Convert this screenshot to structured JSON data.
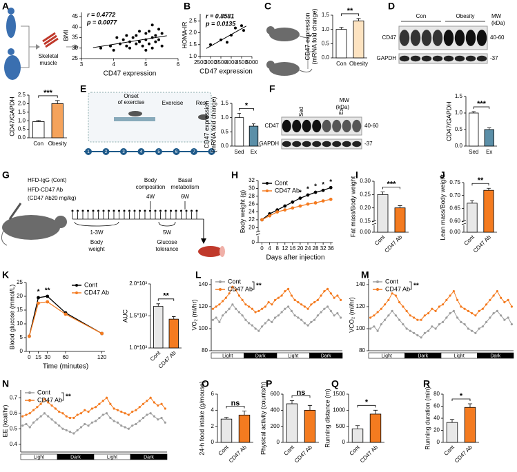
{
  "figure": {
    "A_text": [
      "Skeletal",
      "muscle"
    ],
    "blots": [
      {
        "label": "D",
        "groups": [
          "Con",
          "Obesity"
        ],
        "rows": [
          "CD47",
          "GAPDH"
        ],
        "mw_title": [
          "MW",
          "(kDa)"
        ],
        "mw": [
          "40-60",
          "-37"
        ]
      },
      {
        "label": "F",
        "groups": [
          "Sed",
          "Ex"
        ],
        "rows": [
          "CD47",
          "GAPDH"
        ],
        "mw_title": [
          "MW",
          "(kDa)"
        ],
        "mw": [
          "40-60",
          "-37"
        ]
      }
    ],
    "E_diagram": {
      "label": "E",
      "onset": [
        "Onset",
        "of exercise"
      ],
      "exercise": "Exercise",
      "rest": "Rest",
      "days": [
        "1",
        "2",
        "3",
        "4",
        "5",
        "6",
        "7",
        "8"
      ]
    },
    "G_diagram": {
      "label": "G",
      "group1": "HFD-IgG (Cont)",
      "group2": "HFD-CD47 Ab",
      "dose": "(CD47 Ab20 mg/kg)",
      "composition": [
        "Body",
        "composition"
      ],
      "w4": "4W",
      "metabolism": [
        "Basal",
        "metabolism"
      ],
      "w6": "6W",
      "w13": "1-3W",
      "weight": [
        "Body",
        "weight"
      ],
      "w5": "5W",
      "glucose": [
        "Glucose",
        "tolerance"
      ]
    }
  },
  "chart_data": [
    {
      "type": "scatter",
      "label": "A",
      "x": [
        3.6,
        3.9,
        4.0,
        4.2,
        4.3,
        4.4,
        4.5,
        4.5,
        4.6,
        4.7,
        4.7,
        4.8,
        4.9,
        5.0,
        5.0,
        5.1,
        5.1,
        5.2,
        5.2,
        5.3,
        5.3,
        5.4,
        5.4,
        5.5,
        5.5,
        4.1,
        4.8,
        5.0,
        5.2,
        4.4
      ],
      "y": [
        30,
        31,
        29,
        32,
        34,
        31,
        33,
        30,
        35,
        32,
        36,
        33,
        31,
        34,
        37,
        32,
        38,
        35,
        30,
        36,
        33,
        39,
        34,
        37,
        31,
        35,
        38,
        29,
        41,
        36
      ],
      "xlim": [
        3,
        6
      ],
      "xticks": [
        3,
        4,
        5,
        6
      ],
      "ylim": [
        25,
        47
      ],
      "yticks": [
        25,
        30,
        35,
        40,
        45
      ],
      "xlabel": "CD47 expression",
      "ylabel": [
        "BMI"
      ],
      "annotations": [
        "r = 0.4772",
        "p = 0.0077"
      ],
      "color": "#000000"
    },
    {
      "type": "scatter",
      "label": "B",
      "x": [
        3000,
        3500,
        3800,
        4000,
        4200,
        4500,
        4600
      ],
      "y": [
        1.5,
        1.7,
        1.6,
        1.9,
        2.2,
        2.3,
        2.1
      ],
      "xlim": [
        2500,
        5000
      ],
      "xticks": [
        2500,
        3000,
        3500,
        4000,
        4500,
        5000
      ],
      "ylim": [
        1.0,
        2.8
      ],
      "yticks": [
        {
          "value": 1,
          "label": "1.0"
        },
        1.5,
        {
          "value": 2,
          "label": "2.0"
        },
        2.5
      ],
      "xlabel": "CD47 expression",
      "ylabel": [
        "HOMA-IR"
      ],
      "annotations": [
        "r = 0.8581",
        "p = 0.0135"
      ],
      "color": "#000000"
    },
    {
      "type": "bar",
      "label": "C",
      "categories": [
        "Con",
        "Obesity"
      ],
      "values": [
        1.0,
        1.3
      ],
      "errors": [
        0.07,
        0.08
      ],
      "colors": [
        "#ffffff",
        "#fde3c1"
      ],
      "ylim": [
        0,
        1.5
      ],
      "yticks": [
        {
          "value": 0,
          "label": "0.0"
        },
        0.5,
        {
          "value": 1,
          "label": "1.0"
        },
        1.5
      ],
      "ylabel": [
        "CD47 expression",
        "(mRNA fold change)"
      ],
      "sig": "**",
      "rotate": false
    },
    {
      "type": "bar",
      "categories": [
        "Con",
        "Obesity"
      ],
      "values": [
        0.95,
        2.0
      ],
      "errors": [
        0.06,
        0.18
      ],
      "colors": [
        "#ffffff",
        "#f5a35c"
      ],
      "ylim": [
        0,
        2.5
      ],
      "yticks": [
        {
          "value": 0,
          "label": "0.0"
        },
        0.5,
        {
          "value": 1,
          "label": "1.0"
        },
        1.5,
        {
          "value": 2,
          "label": "2.0"
        },
        2.5
      ],
      "ylabel": [
        "CD47/GAPDH"
      ],
      "sig": "***",
      "rotate": false
    },
    {
      "type": "bar",
      "categories": [
        "Sed",
        "Ex"
      ],
      "values": [
        1.0,
        0.7
      ],
      "errors": [
        0.15,
        0.08
      ],
      "colors": [
        "#ffffff",
        "#5b8fa8"
      ],
      "ylim": [
        0,
        1.5
      ],
      "yticks": [
        {
          "value": 0,
          "label": "0.0"
        },
        0.5,
        {
          "value": 1,
          "label": "1.0"
        },
        1.5
      ],
      "ylabel": [
        "CD47 expression",
        "(mRNA fold change)"
      ],
      "sig": "*",
      "rotate": false
    },
    {
      "type": "bar",
      "categories": [
        "Sed",
        "Ex"
      ],
      "values": [
        1.0,
        0.5
      ],
      "errors": [
        0.04,
        0.05
      ],
      "colors": [
        "#ffffff",
        "#5b8fa8"
      ],
      "ylim": [
        0,
        1.5
      ],
      "yticks": [
        {
          "value": 0,
          "label": "0.0"
        },
        0.5,
        {
          "value": 1,
          "label": "1.0"
        },
        1.5
      ],
      "ylabel": [
        "CD47/GAPDH"
      ],
      "sig": "***",
      "rotate": false
    },
    {
      "type": "line",
      "label": "H",
      "x": [
        0,
        4,
        8,
        12,
        16,
        20,
        24,
        28,
        32,
        36
      ],
      "series": [
        {
          "name": "Cont",
          "color": "#000000",
          "values": [
            22,
            23.5,
            24.5,
            25.5,
            26.5,
            27.5,
            28.3,
            29,
            29.5,
            30.2
          ]
        },
        {
          "name": "CD47 Ab",
          "color": "#f47b20",
          "values": [
            22,
            23,
            24,
            24.5,
            25,
            25.5,
            26,
            26.3,
            26.8,
            27.2
          ]
        }
      ],
      "xlim": [
        -2,
        37
      ],
      "xticks": [
        0,
        4,
        8,
        12,
        16,
        20,
        24,
        28,
        32,
        36
      ],
      "ylim": [
        19,
        32
      ],
      "yticks": [
        20,
        22,
        24,
        26,
        28,
        30,
        32
      ],
      "ybreak": 0,
      "xlabel": "Days after injection",
      "ylabel": [
        "Body weight (g)"
      ],
      "legend": "upper left",
      "sig_x": [
        20,
        24,
        28,
        32,
        36
      ],
      "sig_labels": [
        "*",
        "*",
        "*",
        "*",
        "*"
      ]
    },
    {
      "type": "bar",
      "label": "I",
      "categories": [
        "Cont",
        "CD47 Ab"
      ],
      "values": [
        0.25,
        0.2
      ],
      "errors": [
        0.01,
        0.008
      ],
      "colors": [
        "#e8e8e8",
        "#f47b20"
      ],
      "ylim": [
        0.15,
        0.3
      ],
      "yticks": [
        0.15,
        {
          "value": 0.2,
          "label": "0.20"
        },
        0.25,
        {
          "value": 0.3,
          "label": "0.30"
        }
      ],
      "ybreak": {
        "value": 0,
        "label": "0.00"
      },
      "ylabel": [
        "Fat mass/Body weight"
      ],
      "sig": "***",
      "rotate": true
    },
    {
      "type": "bar",
      "label": "J",
      "categories": [
        "Cont",
        "CD47 Ab"
      ],
      "values": [
        0.67,
        0.72
      ],
      "errors": [
        0.01,
        0.008
      ],
      "colors": [
        "#e8e8e8",
        "#f47b20"
      ],
      "ylim": [
        0.6,
        0.75
      ],
      "yticks": [
        {
          "value": 0.6,
          "label": "0.60"
        },
        0.65,
        {
          "value": 0.7,
          "label": "0.70"
        },
        0.75
      ],
      "ybreak": {
        "value": 0,
        "label": "0.00"
      },
      "ylabel": [
        "Lean mass/Body weight"
      ],
      "sig": "**",
      "rotate": true
    },
    {
      "type": "line",
      "label": "K",
      "x": [
        0,
        15,
        30,
        60,
        120
      ],
      "series": [
        {
          "name": "Cont",
          "color": "#000000",
          "values": [
            5.5,
            19.5,
            20,
            14,
            6.5
          ]
        },
        {
          "name": "CD47 Ab",
          "color": "#f47b20",
          "values": [
            5.5,
            17.5,
            18,
            13.5,
            6.5
          ]
        }
      ],
      "xlim": [
        -5,
        125
      ],
      "xticks": [
        0,
        15,
        30,
        60,
        120
      ],
      "ylim": [
        0,
        25
      ],
      "yticks": [
        0,
        5,
        10,
        15,
        20,
        25
      ],
      "xlabel": "Time (minutes)",
      "ylabel": [
        "Blood glucose (mmol/L)"
      ],
      "legend": "upper right",
      "sig_x": [
        15,
        30
      ],
      "sig_labels": [
        "*",
        "**"
      ]
    },
    {
      "type": "bar",
      "categories": [
        "Cont",
        "CD47 Ab"
      ],
      "values": [
        1650,
        1450
      ],
      "errors": [
        40,
        40
      ],
      "colors": [
        "#e8e8e8",
        "#f47b20"
      ],
      "ylim": [
        1000,
        2000
      ],
      "yticks": [
        {
          "value": 1000,
          "label": "1.0*10³"
        },
        {
          "value": 1500,
          "label": "1.5*10³"
        },
        {
          "value": 2000,
          "label": "2.0*10³"
        }
      ],
      "ylabel": [
        "AUC"
      ],
      "sig": "**",
      "rotate": true
    },
    {
      "type": "line",
      "label": "L",
      "series": [
        {
          "name": "Cont",
          "color": "#9e9e9e",
          "values": [
            108,
            110,
            106,
            112,
            115,
            118,
            122,
            118,
            115,
            112,
            108,
            105,
            103,
            100,
            98,
            102,
            105,
            108,
            106,
            110,
            112,
            115,
            118,
            120,
            116,
            112,
            110,
            108,
            105,
            103,
            106,
            108,
            112,
            115,
            118,
            120,
            116,
            112,
            114,
            110
          ]
        },
        {
          "name": "CD47 Ab",
          "color": "#f47b20",
          "values": [
            118,
            120,
            122,
            125,
            128,
            132,
            138,
            135,
            130,
            126,
            122,
            120,
            118,
            115,
            116,
            118,
            120,
            124,
            122,
            126,
            128,
            130,
            134,
            136,
            130,
            126,
            124,
            122,
            120,
            118,
            122,
            124,
            126,
            130,
            134,
            136,
            132,
            128,
            130,
            126
          ]
        }
      ],
      "ylim": [
        80,
        145
      ],
      "yticks": [
        80,
        100,
        120,
        140
      ],
      "ylabel": [
        "VO₂ (ml/hr)"
      ],
      "legend": "upper left",
      "sig": "**",
      "phases": [
        "Light",
        "Dark",
        "Light",
        "Dark"
      ]
    },
    {
      "type": "line",
      "label": "M",
      "series": [
        {
          "name": "Cont",
          "color": "#9e9e9e",
          "values": [
            100,
            102,
            98,
            104,
            108,
            112,
            116,
            112,
            108,
            104,
            100,
            98,
            96,
            94,
            92,
            96,
            98,
            102,
            100,
            104,
            106,
            110,
            114,
            116,
            110,
            106,
            104,
            100,
            98,
            96,
            100,
            102,
            106,
            110,
            114,
            116,
            112,
            108,
            110,
            104
          ]
        },
        {
          "name": "CD47 Ab",
          "color": "#f47b20",
          "values": [
            110,
            112,
            115,
            118,
            122,
            126,
            132,
            130,
            124,
            120,
            116,
            112,
            110,
            108,
            108,
            112,
            114,
            118,
            116,
            120,
            122,
            126,
            130,
            134,
            126,
            120,
            118,
            116,
            114,
            112,
            116,
            118,
            122,
            126,
            130,
            134,
            128,
            124,
            126,
            120
          ]
        }
      ],
      "ylim": [
        80,
        145
      ],
      "yticks": [
        80,
        100,
        120,
        140
      ],
      "ylabel": [
        "VCO₂ (ml/hr)"
      ],
      "legend": "upper left",
      "sig": "**",
      "phases": [
        "Light",
        "Dark",
        "Light",
        "Dark"
      ]
    },
    {
      "type": "line",
      "label": "N",
      "series": [
        {
          "name": "Cont",
          "color": "#9e9e9e",
          "values": [
            0.52,
            0.53,
            0.51,
            0.54,
            0.56,
            0.58,
            0.6,
            0.58,
            0.56,
            0.54,
            0.52,
            0.5,
            0.49,
            0.48,
            0.47,
            0.49,
            0.51,
            0.53,
            0.52,
            0.54,
            0.55,
            0.57,
            0.59,
            0.6,
            0.57,
            0.55,
            0.54,
            0.52,
            0.51,
            0.5,
            0.52,
            0.53,
            0.55,
            0.57,
            0.59,
            0.6,
            0.58,
            0.56,
            0.57,
            0.54
          ]
        },
        {
          "name": "CD47 Ab",
          "color": "#f47b20",
          "values": [
            0.58,
            0.59,
            0.6,
            0.62,
            0.64,
            0.66,
            0.69,
            0.67,
            0.65,
            0.63,
            0.61,
            0.6,
            0.58,
            0.57,
            0.57,
            0.59,
            0.6,
            0.62,
            0.61,
            0.63,
            0.64,
            0.66,
            0.68,
            0.7,
            0.66,
            0.63,
            0.62,
            0.61,
            0.6,
            0.59,
            0.61,
            0.62,
            0.64,
            0.66,
            0.68,
            0.7,
            0.67,
            0.65,
            0.66,
            0.63
          ]
        }
      ],
      "ylim": [
        0.35,
        0.75
      ],
      "yticks": [
        0.4,
        0.5,
        0.6,
        0.7
      ],
      "ylabel": [
        "EE (kcal/hr)"
      ],
      "legend": "upper left",
      "sig": "**",
      "phases": [
        "Light",
        "Dark",
        "Light",
        "Dark"
      ]
    },
    {
      "type": "bar",
      "label": "O",
      "categories": [
        "Cont",
        "CD47 Ab"
      ],
      "values": [
        2.9,
        3.4
      ],
      "errors": [
        0.2,
        0.5
      ],
      "colors": [
        "#e8e8e8",
        "#f47b20"
      ],
      "ylim": [
        0,
        6
      ],
      "yticks": [
        0,
        2,
        4,
        6
      ],
      "ylabel": [
        "24-h food intake (g/mouse)"
      ],
      "sig": "ns",
      "rotate": true
    },
    {
      "type": "bar",
      "label": "P",
      "categories": [
        "Cont",
        "CD47 Ab"
      ],
      "values": [
        480,
        400
      ],
      "errors": [
        40,
        60
      ],
      "colors": [
        "#e8e8e8",
        "#f47b20"
      ],
      "ylim": [
        0,
        600
      ],
      "yticks": [
        0,
        200,
        400,
        600
      ],
      "ylabel": [
        "Physical activity (counts/h)"
      ],
      "sig": "ns",
      "rotate": true
    },
    {
      "type": "bar",
      "label": "Q",
      "categories": [
        "Cont",
        "CD47 Ab"
      ],
      "values": [
        420,
        880
      ],
      "errors": [
        100,
        120
      ],
      "colors": [
        "#e8e8e8",
        "#f47b20"
      ],
      "ylim": [
        0,
        1500
      ],
      "yticks": [
        0,
        500,
        1000,
        1500
      ],
      "ylabel": [
        "Running distance (m)"
      ],
      "sig": "*",
      "rotate": true
    },
    {
      "type": "bar",
      "label": "R",
      "categories": [
        "Cont",
        "CD47 Ab"
      ],
      "values": [
        33,
        58
      ],
      "errors": [
        5,
        6
      ],
      "colors": [
        "#e8e8e8",
        "#f47b20"
      ],
      "ylim": [
        0,
        80
      ],
      "yticks": [
        0,
        20,
        40,
        60,
        80
      ],
      "ylabel": [
        "Running duration (min)"
      ],
      "sig": "*",
      "rotate": true
    }
  ]
}
